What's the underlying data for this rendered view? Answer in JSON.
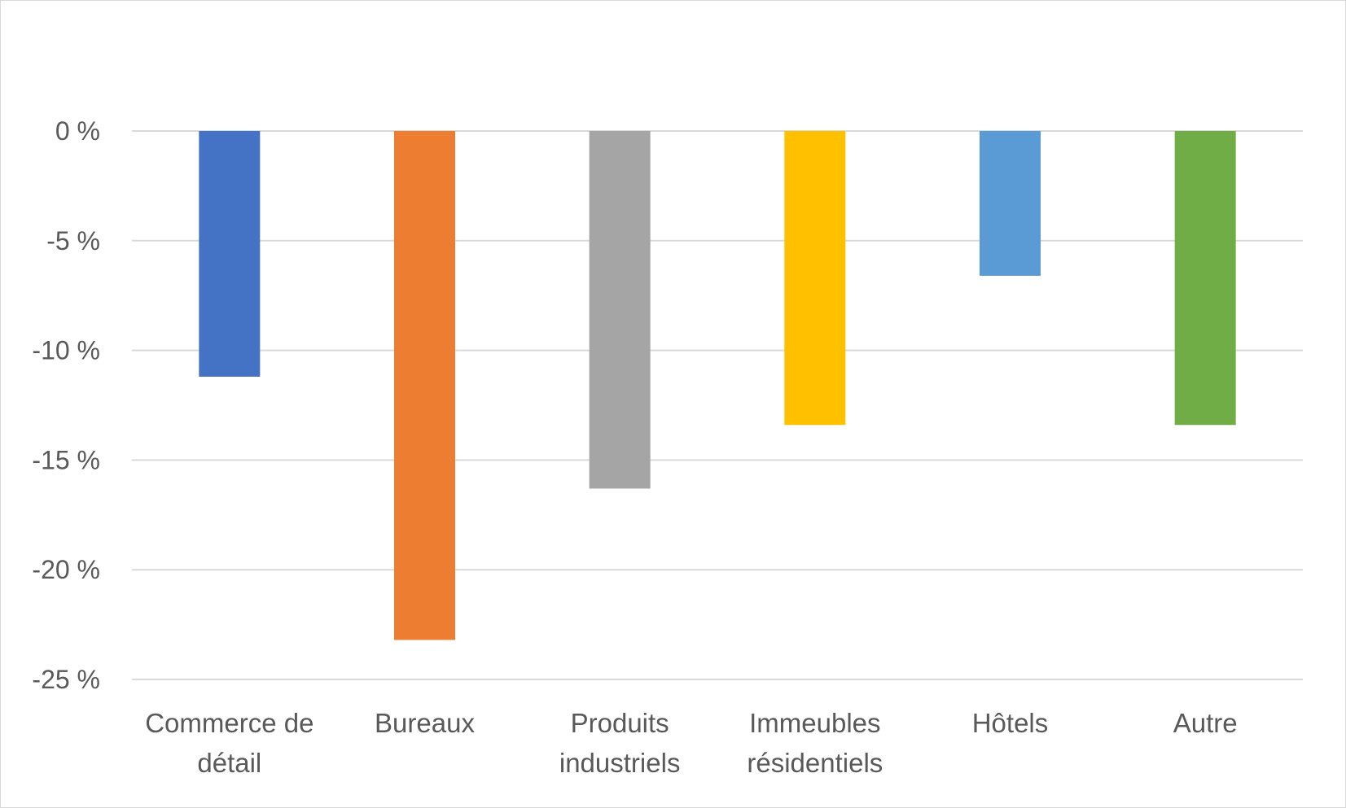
{
  "chart_data": {
    "type": "bar",
    "categories": [
      [
        "Commerce de",
        "détail"
      ],
      [
        "Bureaux"
      ],
      [
        "Produits",
        "industriels"
      ],
      [
        "Immeubles",
        "résidentiels"
      ],
      [
        "Hôtels"
      ],
      [
        "Autre"
      ]
    ],
    "values": [
      -11.2,
      -23.2,
      -16.3,
      -13.4,
      -6.6,
      -13.4
    ],
    "colors": [
      "#4472c4",
      "#ed7d31",
      "#a5a5a5",
      "#ffc000",
      "#5b9bd5",
      "#70ad47"
    ],
    "ylim": [
      -25,
      0
    ],
    "yticks": [
      0,
      -5,
      -10,
      -15,
      -20,
      -25
    ],
    "ytick_labels": [
      "0 %",
      "-5 %",
      "-10 %",
      "-15 %",
      "-20 %",
      "-25 %"
    ],
    "grid": true,
    "gridline_color": "#d9d9d9",
    "label_color": "#595959",
    "legend": "none"
  }
}
